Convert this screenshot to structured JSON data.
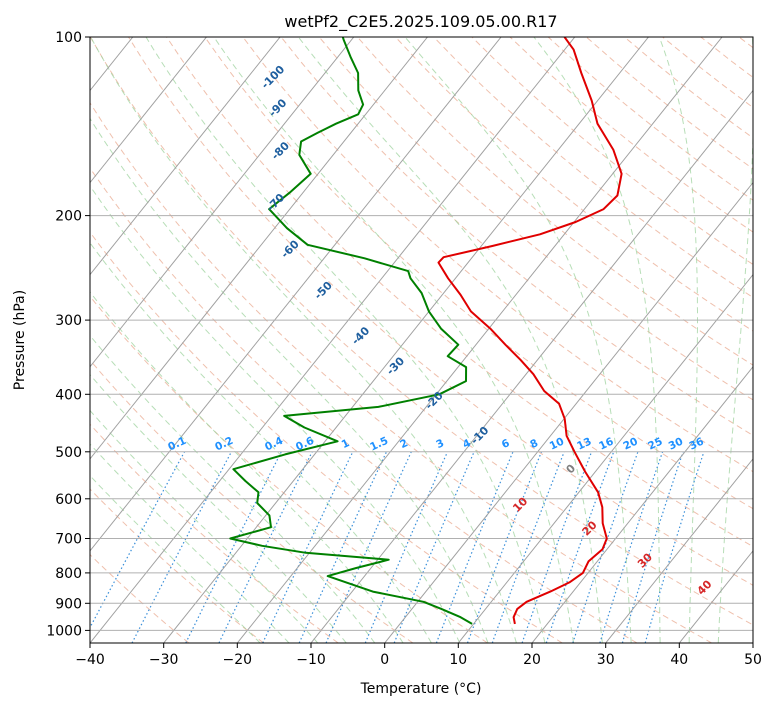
{
  "chart_data": {
    "type": "skew-t",
    "title": "wetPf2_C2E5.2025.109.05.00.R17",
    "xlabel": "Temperature (°C)",
    "ylabel": "Pressure (hPa)",
    "xlim": [
      -40,
      50
    ],
    "ylim": [
      1050,
      100
    ],
    "x_ticks": [
      -40,
      -30,
      -20,
      -10,
      0,
      10,
      20,
      30,
      40,
      50
    ],
    "x_tick_labels": [
      "−40",
      "−30",
      "−20",
      "−10",
      "0",
      "10",
      "20",
      "30",
      "40",
      "50"
    ],
    "y_ticks": [
      1000,
      900,
      800,
      700,
      600,
      500,
      400,
      300,
      200,
      100
    ],
    "y_tick_labels": [
      "1000",
      "900",
      "800",
      "700",
      "600",
      "500",
      "400",
      "300",
      "200",
      "100"
    ],
    "y_scale": "log",
    "grid": true,
    "series": [
      {
        "role": "temperature",
        "color": "#e00000",
        "points": [
          [
            15.6,
            975
          ],
          [
            14.7,
            950
          ],
          [
            14.3,
            920
          ],
          [
            14.8,
            895
          ],
          [
            16.9,
            860
          ],
          [
            18.5,
            830
          ],
          [
            19.3,
            800
          ],
          [
            18.8,
            765
          ],
          [
            19.4,
            730
          ],
          [
            18.8,
            700
          ],
          [
            16.6,
            660
          ],
          [
            14.8,
            620
          ],
          [
            12.6,
            585
          ],
          [
            8.6,
            540
          ],
          [
            5.0,
            500
          ],
          [
            2.2,
            470
          ],
          [
            0.1,
            440
          ],
          [
            -2.3,
            415
          ],
          [
            -5.7,
            395
          ],
          [
            -9.0,
            370
          ],
          [
            -12.3,
            350
          ],
          [
            -16.0,
            330
          ],
          [
            -19.8,
            310
          ],
          [
            -24.3,
            290
          ],
          [
            -27.5,
            272
          ],
          [
            -31.0,
            255
          ],
          [
            -34.0,
            240
          ],
          [
            -33.9,
            235
          ],
          [
            -28.5,
            225
          ],
          [
            -23.3,
            215
          ],
          [
            -19.8,
            205
          ],
          [
            -17.4,
            195
          ],
          [
            -17.0,
            185
          ],
          [
            -18.8,
            170
          ],
          [
            -22.5,
            155
          ],
          [
            -27.5,
            140
          ],
          [
            -30.8,
            128
          ],
          [
            -35.2,
            115
          ],
          [
            -38.8,
            105
          ],
          [
            -41.4,
            100
          ]
        ]
      },
      {
        "role": "dewpoint",
        "color": "#008000",
        "points": [
          [
            9.8,
            975
          ],
          [
            7.5,
            950
          ],
          [
            4.0,
            920
          ],
          [
            0.8,
            895
          ],
          [
            -7.2,
            860
          ],
          [
            -11.8,
            830
          ],
          [
            -15.0,
            810
          ],
          [
            -12.0,
            785
          ],
          [
            -8.5,
            760
          ],
          [
            -20.5,
            740
          ],
          [
            -27.2,
            720
          ],
          [
            -32.3,
            700
          ],
          [
            -28.0,
            670
          ],
          [
            -29.5,
            640
          ],
          [
            -32.5,
            610
          ],
          [
            -33.5,
            585
          ],
          [
            -36.5,
            560
          ],
          [
            -39.4,
            535
          ],
          [
            -34.0,
            505
          ],
          [
            -28.3,
            480
          ],
          [
            -34.3,
            455
          ],
          [
            -38.3,
            435
          ],
          [
            -26.5,
            420
          ],
          [
            -19.6,
            400
          ],
          [
            -17.4,
            380
          ],
          [
            -18.9,
            360
          ],
          [
            -22.6,
            345
          ],
          [
            -22.4,
            330
          ],
          [
            -26.5,
            310
          ],
          [
            -30.0,
            290
          ],
          [
            -33.0,
            270
          ],
          [
            -36.1,
            255
          ],
          [
            -37.2,
            248
          ],
          [
            -44.5,
            236
          ],
          [
            -53.7,
            224
          ],
          [
            -58.3,
            210
          ],
          [
            -62.8,
            195
          ],
          [
            -61.8,
            183
          ],
          [
            -61.0,
            170
          ],
          [
            -64.6,
            158
          ],
          [
            -65.8,
            150
          ],
          [
            -64.5,
            145
          ],
          [
            -63.0,
            140
          ],
          [
            -61.0,
            135
          ],
          [
            -61.4,
            130
          ],
          [
            -63.6,
            123
          ],
          [
            -65.5,
            115
          ],
          [
            -68.3,
            108
          ],
          [
            -71.1,
            101
          ],
          [
            -71.5,
            100
          ]
        ]
      }
    ],
    "dry_adiabat_labels": [
      {
        "text": "-100",
        "x": -76,
        "p": 118
      },
      {
        "text": "-90",
        "x": -72,
        "p": 133
      },
      {
        "text": "-80",
        "x": -67,
        "p": 157
      },
      {
        "text": "-70",
        "x": -62,
        "p": 192
      },
      {
        "text": "-60",
        "x": -55,
        "p": 230
      },
      {
        "text": "-50",
        "x": -46,
        "p": 270
      },
      {
        "text": "-40",
        "x": -36,
        "p": 322
      },
      {
        "text": "-30",
        "x": -28,
        "p": 362
      },
      {
        "text": "-20",
        "x": -19,
        "p": 414
      },
      {
        "text": "-10",
        "x": -9,
        "p": 474
      }
    ],
    "moist_adiabat_labels": [
      {
        "text": "0",
        "x": 7,
        "p": 540
      },
      {
        "text": "10",
        "x": 4,
        "p": 620
      },
      {
        "text": "20",
        "x": 16,
        "p": 680
      },
      {
        "text": "30",
        "x": 27,
        "p": 770
      },
      {
        "text": "40",
        "x": 38,
        "p": 855
      }
    ],
    "mixing_ratio_labels": [
      "0.1",
      "0.2",
      "0.4",
      "0.6",
      "1",
      "1.5",
      "2",
      "3",
      "4",
      "6",
      "8",
      "10",
      "13",
      "16",
      "20",
      "25",
      "30",
      "36"
    ],
    "colors": {
      "temperature": "#e00000",
      "dewpoint": "#008000",
      "dry_adiabat_label": "#1f5f9f",
      "moist_adiabat_label": "#d62728",
      "mixing_ratio_label": "#1e90ff"
    }
  }
}
